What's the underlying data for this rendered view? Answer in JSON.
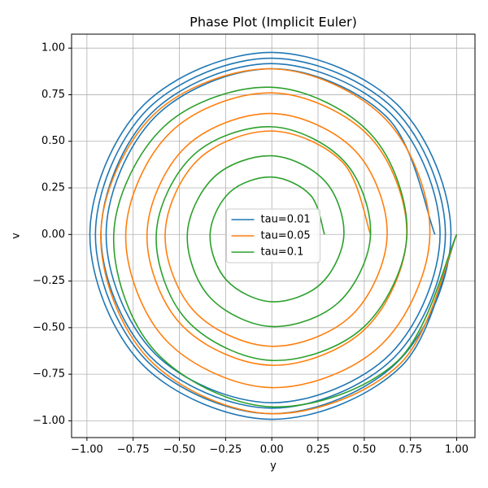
{
  "chart_data": {
    "type": "line",
    "title": "Phase Plot (Implicit Euler)",
    "x_label": "y",
    "y_label": "v",
    "xlim": [
      -1.083,
      1.099
    ],
    "ylim": [
      -1.09,
      1.075
    ],
    "grid": true,
    "legend": "center",
    "xticks": [
      {
        "value": -1,
        "label": "−1.00"
      },
      {
        "value": -0.75,
        "label": "−0.75"
      },
      {
        "value": -0.5,
        "label": "−0.50"
      },
      {
        "value": -0.25,
        "label": "−0.25"
      },
      {
        "value": 0,
        "label": "0.00"
      },
      {
        "value": 0.25,
        "label": "0.25"
      },
      {
        "value": 0.5,
        "label": "0.50"
      },
      {
        "value": 0.75,
        "label": "0.75"
      },
      {
        "value": 1,
        "label": "1.00"
      }
    ],
    "yticks": [
      {
        "value": -1,
        "label": "−1.00"
      },
      {
        "value": -0.75,
        "label": "−0.75"
      },
      {
        "value": -0.5,
        "label": "−0.50"
      },
      {
        "value": -0.25,
        "label": "−0.25"
      },
      {
        "value": 0,
        "label": "0.00"
      },
      {
        "value": 0.25,
        "label": "0.25"
      },
      {
        "value": 0.5,
        "label": "0.50"
      },
      {
        "value": 0.75,
        "label": "0.75"
      },
      {
        "value": 1,
        "label": "1.00"
      }
    ],
    "series": [
      {
        "name": "tau=0.01",
        "color": "#1f77b4",
        "x": [
          1,
          0.704,
          0,
          -0.699,
          -0.984,
          -0.694,
          0,
          0.688,
          0.969,
          0.682,
          0,
          -0.677,
          -0.954,
          -0.672,
          0,
          0.667,
          0.939,
          0.661,
          0,
          -0.656,
          -0.924,
          -0.651,
          0,
          0.646,
          0.91,
          0.641,
          0,
          -0.636,
          -0.896,
          -0.631,
          0,
          0.626,
          0.882
        ],
        "values": [
          0,
          -0.704,
          -0.992,
          -0.699,
          0,
          0.694,
          0.977,
          0.688,
          0,
          -0.682,
          -0.962,
          -0.677,
          0,
          0.672,
          0.946,
          0.667,
          0,
          -0.661,
          -0.932,
          -0.656,
          0,
          0.651,
          0.917,
          0.646,
          0,
          -0.641,
          -0.903,
          -0.636,
          0,
          0.631,
          0.889,
          0.626,
          0
        ]
      },
      {
        "name": "tau=0.05",
        "color": "#ff7f0e",
        "x": [
          1,
          0.694,
          0,
          -0.667,
          -0.925,
          -0.641,
          0,
          0.617,
          0.855,
          0.592,
          0,
          -0.57,
          -0.79,
          -0.548,
          0,
          0.527,
          0.73,
          0.506,
          0,
          -0.487,
          -0.675,
          -0.468,
          0,
          0.45,
          0.624,
          0.433,
          0,
          -0.416,
          -0.577,
          -0.4,
          0,
          0.385,
          0.534
        ],
        "values": [
          0,
          -0.694,
          -0.962,
          -0.667,
          0,
          0.641,
          0.889,
          0.617,
          0,
          -0.592,
          -0.822,
          -0.57,
          0,
          0.548,
          0.76,
          0.527,
          0,
          -0.506,
          -0.702,
          -0.487,
          0,
          0.468,
          0.649,
          0.45,
          0,
          -0.433,
          -0.6,
          -0.416,
          0,
          0.4,
          0.555,
          0.385,
          0
        ]
      },
      {
        "name": "tau=0.1",
        "color": "#2ca02c",
        "x": [
          1,
          0.68,
          0,
          -0.629,
          -0.855,
          -0.581,
          0,
          0.537,
          0.731,
          0.497,
          0,
          -0.46,
          -0.625,
          -0.425,
          0,
          0.392,
          0.534,
          0.363,
          0,
          -0.336,
          -0.457,
          -0.31,
          0,
          0.287,
          0.39,
          0.265,
          0,
          -0.245,
          -0.334,
          -0.227,
          0,
          0.21,
          0.285
        ],
        "values": [
          0,
          -0.68,
          -0.925,
          -0.629,
          0,
          0.581,
          0.79,
          0.537,
          0,
          -0.497,
          -0.676,
          -0.46,
          0,
          0.425,
          0.578,
          0.392,
          0,
          -0.363,
          -0.494,
          -0.336,
          0,
          0.31,
          0.422,
          0.287,
          0,
          -0.265,
          -0.361,
          -0.245,
          0,
          0.227,
          0.308,
          0.21,
          0
        ]
      }
    ]
  }
}
